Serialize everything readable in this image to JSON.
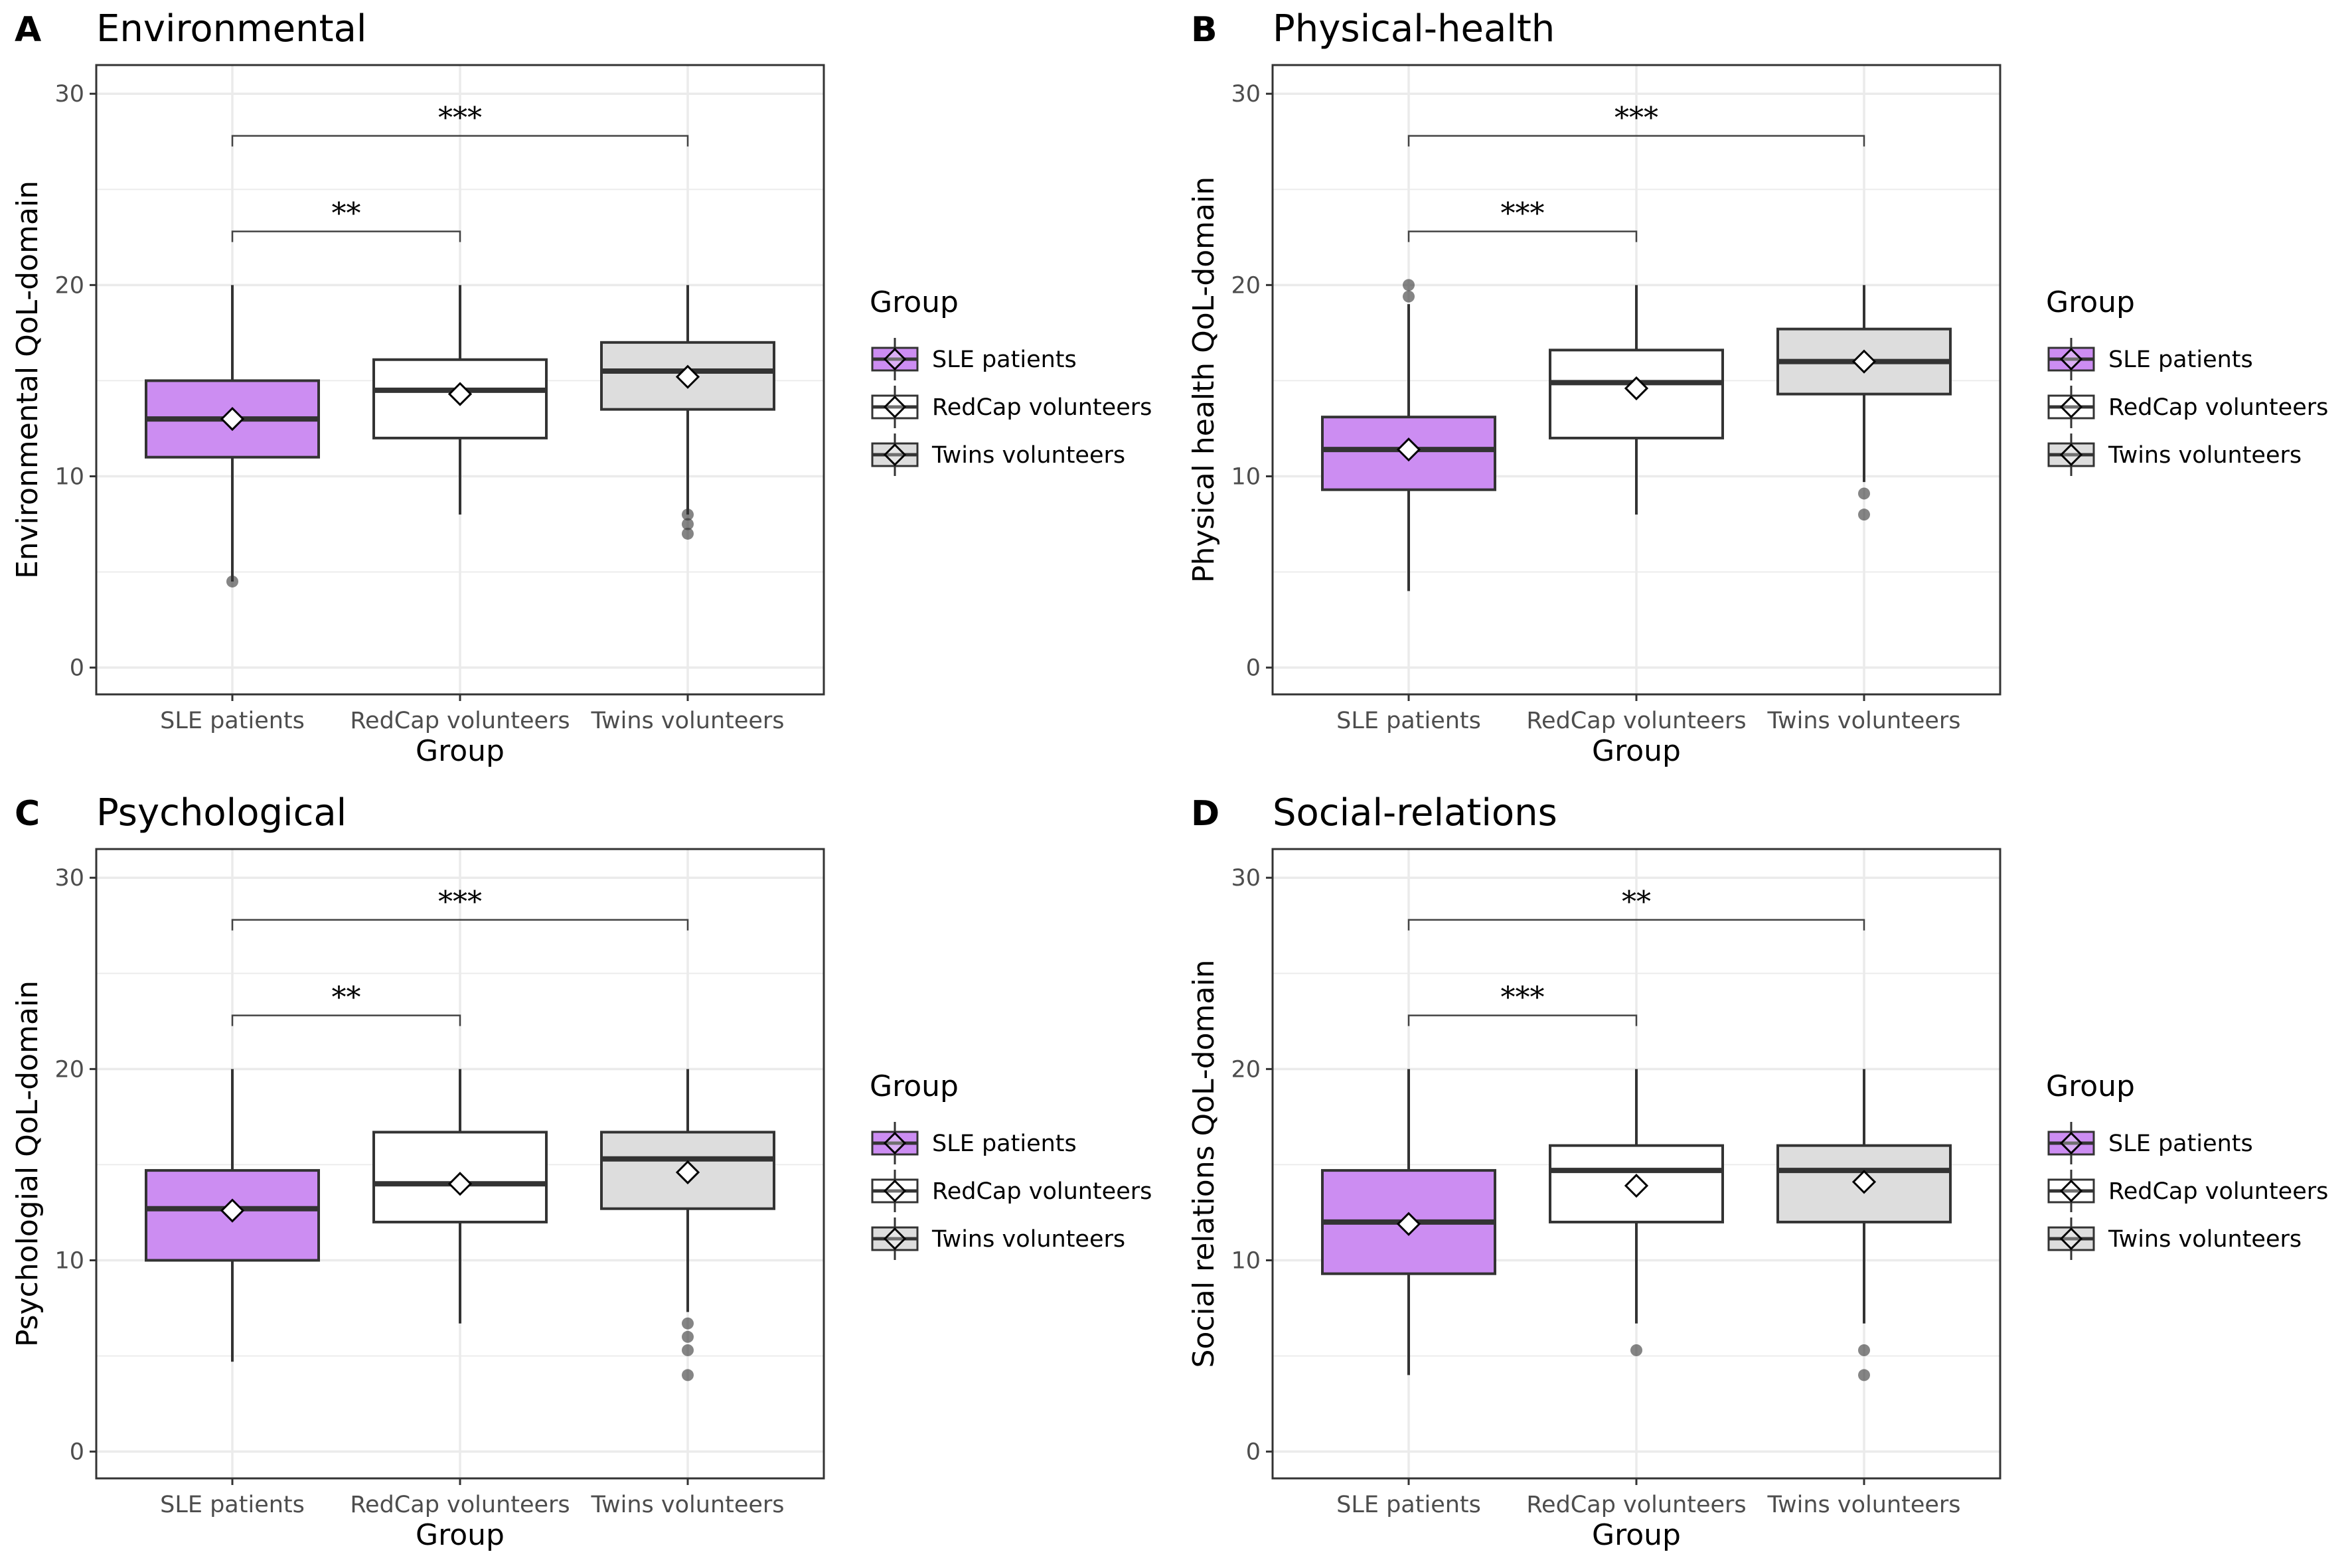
{
  "chart_data": [
    {
      "type": "boxplot",
      "panel_label": "A",
      "title": "Environmental",
      "xlabel": "Group",
      "ylabel": "Environmental QoL-domain",
      "categories": [
        "SLE patients",
        "RedCap volunteers",
        "Twins volunteers"
      ],
      "ylim": [
        -1.4,
        31.5
      ],
      "yticks": [
        0,
        10,
        20,
        30
      ],
      "grid": true,
      "boxes": [
        {
          "min": 4.5,
          "q1": 11,
          "median": 13,
          "q3": 15,
          "max": 20,
          "mean": 13,
          "fill": "#cc8df2",
          "outliers": [
            4.5
          ]
        },
        {
          "min": 8,
          "q1": 12,
          "median": 14.5,
          "q3": 16.1,
          "max": 20,
          "mean": 14.3,
          "fill": "#ffffff",
          "outliers": []
        },
        {
          "min": 8,
          "q1": 13.5,
          "median": 15.5,
          "q3": 17,
          "max": 20,
          "mean": 15.2,
          "fill": "#dddddd",
          "outliers": [
            8,
            7.5,
            7
          ]
        }
      ],
      "significance": [
        {
          "from": 0,
          "to": 1,
          "y": 22.8,
          "label": "**"
        },
        {
          "from": 0,
          "to": 2,
          "y": 27.8,
          "label": "***"
        }
      ]
    },
    {
      "type": "boxplot",
      "panel_label": "B",
      "title": "Physical-health",
      "xlabel": "Group",
      "ylabel": "Physical health QoL-domain",
      "categories": [
        "SLE patients",
        "RedCap volunteers",
        "Twins volunteers"
      ],
      "ylim": [
        -1.4,
        31.5
      ],
      "yticks": [
        0,
        10,
        20,
        30
      ],
      "grid": true,
      "boxes": [
        {
          "min": 4,
          "q1": 9.3,
          "median": 11.4,
          "q3": 13.1,
          "max": 19,
          "mean": 11.4,
          "fill": "#cc8df2",
          "outliers": [
            20,
            19.4
          ]
        },
        {
          "min": 8,
          "q1": 12,
          "median": 14.9,
          "q3": 16.6,
          "max": 20,
          "mean": 14.6,
          "fill": "#ffffff",
          "outliers": []
        },
        {
          "min": 9.7,
          "q1": 14.3,
          "median": 16,
          "q3": 17.7,
          "max": 20,
          "mean": 16,
          "fill": "#dddddd",
          "outliers": [
            9.1,
            8
          ]
        }
      ],
      "significance": [
        {
          "from": 0,
          "to": 1,
          "y": 22.8,
          "label": "***"
        },
        {
          "from": 0,
          "to": 2,
          "y": 27.8,
          "label": "***"
        }
      ]
    },
    {
      "type": "boxplot",
      "panel_label": "C",
      "title": "Psychological",
      "xlabel": "Group",
      "ylabel": "Psychologial QoL-domain",
      "categories": [
        "SLE patients",
        "RedCap volunteers",
        "Twins volunteers"
      ],
      "ylim": [
        -1.4,
        31.5
      ],
      "yticks": [
        0,
        10,
        20,
        30
      ],
      "grid": true,
      "boxes": [
        {
          "min": 4.7,
          "q1": 10,
          "median": 12.7,
          "q3": 14.7,
          "max": 20,
          "mean": 12.6,
          "fill": "#cc8df2",
          "outliers": []
        },
        {
          "min": 6.7,
          "q1": 12,
          "median": 14,
          "q3": 16.7,
          "max": 20,
          "mean": 14,
          "fill": "#ffffff",
          "outliers": []
        },
        {
          "min": 7.3,
          "q1": 12.7,
          "median": 15.3,
          "q3": 16.7,
          "max": 20,
          "mean": 14.6,
          "fill": "#dddddd",
          "outliers": [
            6.7,
            6,
            5.3,
            4
          ]
        }
      ],
      "significance": [
        {
          "from": 0,
          "to": 1,
          "y": 22.8,
          "label": "**"
        },
        {
          "from": 0,
          "to": 2,
          "y": 27.8,
          "label": "***"
        }
      ]
    },
    {
      "type": "boxplot",
      "panel_label": "D",
      "title": "Social-relations",
      "xlabel": "Group",
      "ylabel": "Social relations QoL-domain",
      "categories": [
        "SLE patients",
        "RedCap volunteers",
        "Twins volunteers"
      ],
      "ylim": [
        -1.4,
        31.5
      ],
      "yticks": [
        0,
        10,
        20,
        30
      ],
      "grid": true,
      "boxes": [
        {
          "min": 4,
          "q1": 9.3,
          "median": 12,
          "q3": 14.7,
          "max": 20,
          "mean": 11.9,
          "fill": "#cc8df2",
          "outliers": []
        },
        {
          "min": 6.7,
          "q1": 12,
          "median": 14.7,
          "q3": 16,
          "max": 20,
          "mean": 13.9,
          "fill": "#ffffff",
          "outliers": [
            5.3
          ]
        },
        {
          "min": 6.7,
          "q1": 12,
          "median": 14.7,
          "q3": 16,
          "max": 20,
          "mean": 14.1,
          "fill": "#dddddd",
          "outliers": [
            5.3,
            4
          ]
        }
      ],
      "significance": [
        {
          "from": 0,
          "to": 1,
          "y": 22.8,
          "label": "***"
        },
        {
          "from": 0,
          "to": 2,
          "y": 27.8,
          "label": "**"
        }
      ]
    }
  ],
  "legend": {
    "title": "Group",
    "placement": "right",
    "items": [
      {
        "label": "SLE patients",
        "fill": "#cc8df2"
      },
      {
        "label": "RedCap volunteers",
        "fill": "#ffffff"
      },
      {
        "label": "Twins volunteers",
        "fill": "#dddddd"
      }
    ]
  },
  "colors": {
    "box_outline": "#333333",
    "panel_border": "#333333",
    "grid": "#ebebeb",
    "outlier": "#333333"
  }
}
